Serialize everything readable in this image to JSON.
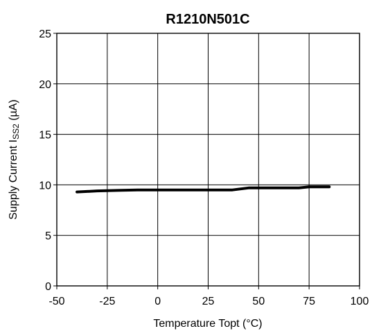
{
  "chart_data": {
    "type": "line",
    "title": "R1210N501C",
    "xlabel": "Temperature Topt (°C)",
    "ylabel_main": "Supply Current I",
    "ylabel_sub": "SS2",
    "ylabel_unit": " (µA)",
    "xlim": [
      -50,
      100
    ],
    "ylim": [
      0,
      25
    ],
    "xticks": [
      -50,
      -25,
      0,
      25,
      50,
      75,
      100
    ],
    "yticks": [
      0,
      5,
      10,
      15,
      20,
      25
    ],
    "grid": true,
    "series": [
      {
        "x": [
          -40,
          -35,
          -30,
          -20,
          -10,
          0,
          10,
          20,
          30,
          37,
          45,
          55,
          65,
          70,
          75,
          85
        ],
        "y": [
          9.3,
          9.35,
          9.4,
          9.45,
          9.5,
          9.5,
          9.5,
          9.5,
          9.5,
          9.5,
          9.7,
          9.7,
          9.7,
          9.7,
          9.8,
          9.8
        ]
      }
    ]
  }
}
